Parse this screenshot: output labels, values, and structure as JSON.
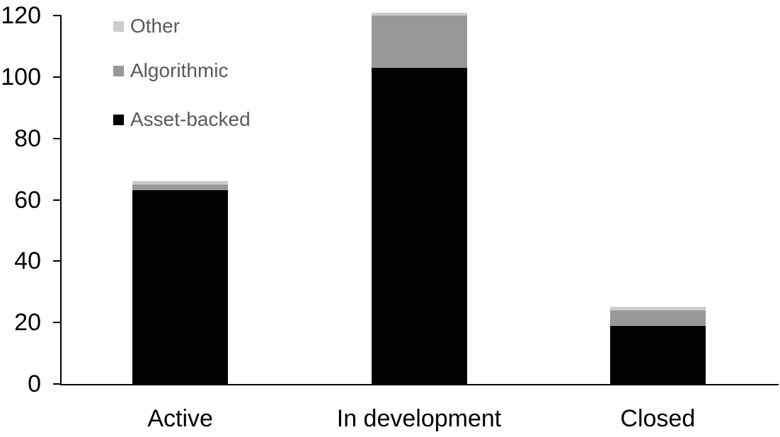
{
  "chart_data": {
    "type": "bar",
    "stacked": true,
    "title": "",
    "xlabel": "",
    "ylabel": "",
    "categories": [
      "Active",
      "In development",
      "Closed"
    ],
    "series": [
      {
        "name": "Asset-backed",
        "color": "#000000",
        "values": [
          63,
          103,
          19
        ]
      },
      {
        "name": "Algorithmic",
        "color": "#989898",
        "values": [
          2,
          17,
          5
        ]
      },
      {
        "name": "Other",
        "color": "#cccccc",
        "values": [
          1,
          1,
          1
        ]
      }
    ],
    "stack_order_bottom_to_top": [
      "Asset-backed",
      "Algorithmic",
      "Other"
    ],
    "totals": [
      66,
      121,
      25
    ],
    "ylim": [
      0,
      120
    ],
    "yticks": [
      "0",
      "20",
      "40",
      "60",
      "80",
      "100",
      "120"
    ],
    "grid": false,
    "legend": {
      "position": "top-left",
      "entries_top_to_bottom": [
        "Other",
        "Algorithmic",
        "Asset-backed"
      ]
    },
    "colors": {
      "axis": "#000000",
      "tick_label": "#000000",
      "category_label": "#000000",
      "legend_text": "#595959"
    }
  }
}
